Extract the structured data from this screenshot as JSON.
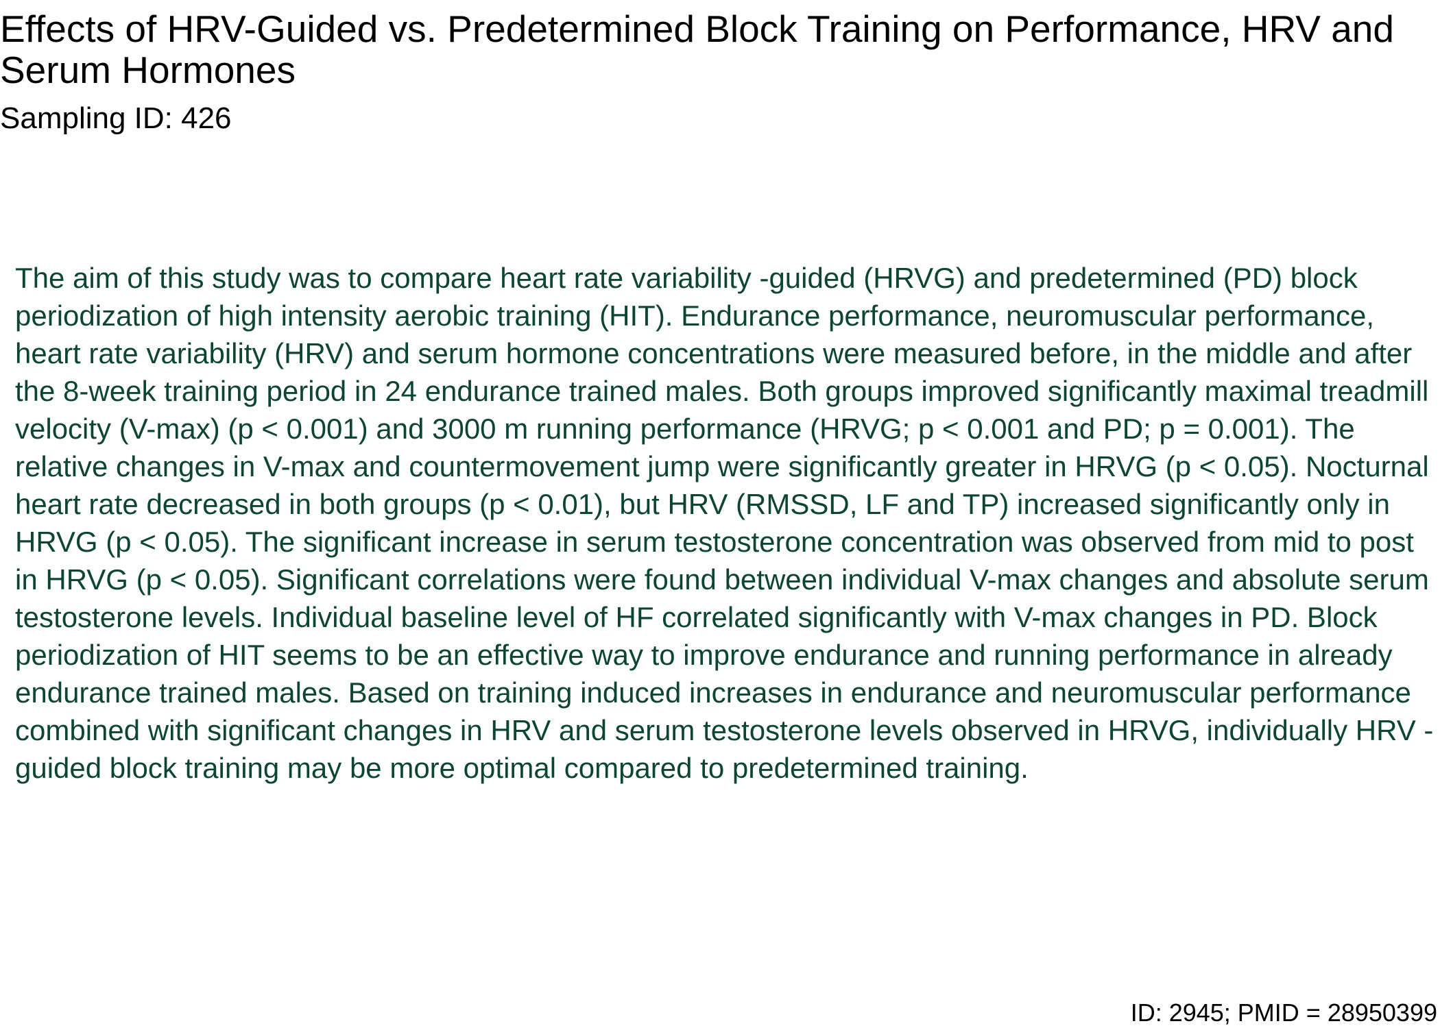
{
  "title": "Effects of HRV-Guided vs. Predetermined Block Training on Performance, HRV and Serum Hormones",
  "sampling": "Sampling ID: 426",
  "abstract": "The aim of this study was to compare heart rate variability -guided (HRVG) and predetermined (PD) block periodization of high intensity aerobic training (HIT). Endurance performance, neuromuscular performance, heart rate variability (HRV) and serum hormone concentrations were measured before, in the middle and after the 8-week training period in 24 endurance trained males. Both groups improved significantly maximal treadmill velocity (V-max) (p < 0.001) and 3000 m running performance (HRVG; p < 0.001 and PD; p = 0.001). The relative changes in V-max and countermovement jump were significantly greater in HRVG (p < 0.05). Nocturnal heart rate decreased in both groups (p < 0.01), but HRV (RMSSD, LF and TP) increased significantly only in HRVG (p < 0.05). The significant increase in serum testosterone concentration was observed from mid to post in HRVG (p < 0.05). Significant correlations were found between individual V-max changes and absolute serum testosterone levels. Individual baseline level of HF correlated significantly with V-max changes in PD. Block periodization of HIT seems to be an effective way to improve endurance and running performance in already endurance trained males. Based on training induced increases in endurance and neuromuscular performance combined with significant changes in HRV and serum testosterone levels observed in HRVG, individually HRV -guided block training may be more optimal compared to predetermined training.",
  "footer": "ID: 2945; PMID = 28950399",
  "colors": {
    "title_text": "#000000",
    "abstract_text": "#0d4533",
    "background": "#ffffff"
  }
}
